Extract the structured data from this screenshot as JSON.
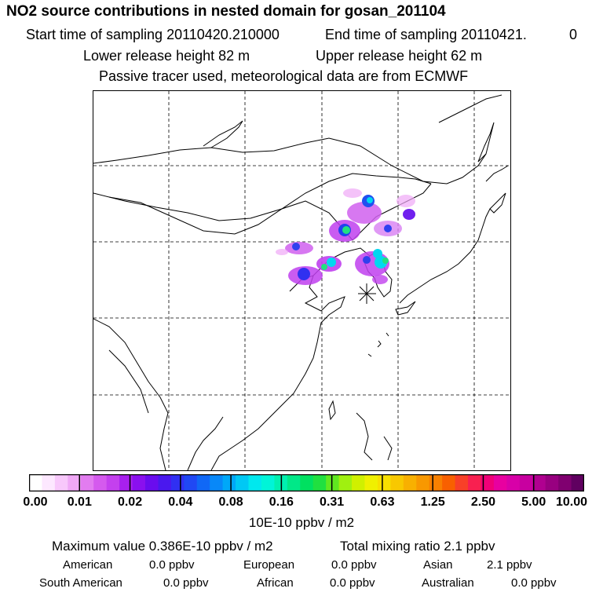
{
  "header": {
    "title": "NO2 source contributions in nested domain for gosan_201104",
    "start_label": "Start time of sampling 20110420.210000",
    "end_label": "End time of sampling 20110421.",
    "end_suffix": "0",
    "lower_height": "Lower release height   82 m",
    "upper_height": "Upper release height   62 m",
    "note": "Passive tracer used, meteorological data are from ECMWF"
  },
  "map": {
    "receptor_marker": "asterisk-icon",
    "plumes": [
      {
        "lon_frac": 0.6,
        "lat_frac": 0.28,
        "level": "strong"
      },
      {
        "lon_frac": 0.66,
        "lat_frac": 0.32,
        "level": "medium"
      },
      {
        "lon_frac": 0.56,
        "lat_frac": 0.36,
        "level": "strong"
      },
      {
        "lon_frac": 0.7,
        "lat_frac": 0.32,
        "level": "medium"
      },
      {
        "lon_frac": 0.47,
        "lat_frac": 0.46,
        "level": "strong"
      },
      {
        "lon_frac": 0.51,
        "lat_frac": 0.45,
        "level": "medium"
      },
      {
        "lon_frac": 0.68,
        "lat_frac": 0.42,
        "level": "strong"
      }
    ]
  },
  "colorbar": {
    "colors": [
      "#ffffff",
      "#fde8ff",
      "#f8c8fb",
      "#f0a8f6",
      "#e27cf0",
      "#d55aee",
      "#c440ee",
      "#a820ee",
      "#8a10ee",
      "#6a0cee",
      "#4a18ee",
      "#3030f2",
      "#2048f4",
      "#1068f6",
      "#0888f8",
      "#00a8f8",
      "#00c8f4",
      "#00e8ee",
      "#00f4d8",
      "#00f0b0",
      "#00e888",
      "#00e060",
      "#20e040",
      "#60e820",
      "#a0f010",
      "#d0f000",
      "#f0f000",
      "#f8e000",
      "#f8c800",
      "#f8b000",
      "#f89800",
      "#f88000",
      "#f86000",
      "#f84028",
      "#f82050",
      "#f00078",
      "#e800a0",
      "#d800a8",
      "#c800a0",
      "#b00090",
      "#980080",
      "#800070",
      "#600060"
    ],
    "ticks": [
      "0.00",
      "0.01",
      "0.02",
      "0.04",
      "0.08",
      "0.16",
      "0.31",
      "0.63",
      "1.25",
      "2.50",
      "5.00",
      "10.00"
    ],
    "unit": "10E-10 ppbv / m2"
  },
  "stats": {
    "max_value": "Maximum value  0.386E-10 ppbv / m2",
    "total": "Total mixing ratio       2.1 ppbv",
    "regions": [
      {
        "label": "American",
        "value": "0.0 ppbv"
      },
      {
        "label": "European",
        "value": "0.0 ppbv"
      },
      {
        "label": "Asian",
        "value": "2.1 ppbv"
      },
      {
        "label": "South American",
        "value": "0.0 ppbv"
      },
      {
        "label": "African",
        "value": "0.0 ppbv"
      },
      {
        "label": "Australian",
        "value": "0.0 ppbv"
      }
    ]
  }
}
